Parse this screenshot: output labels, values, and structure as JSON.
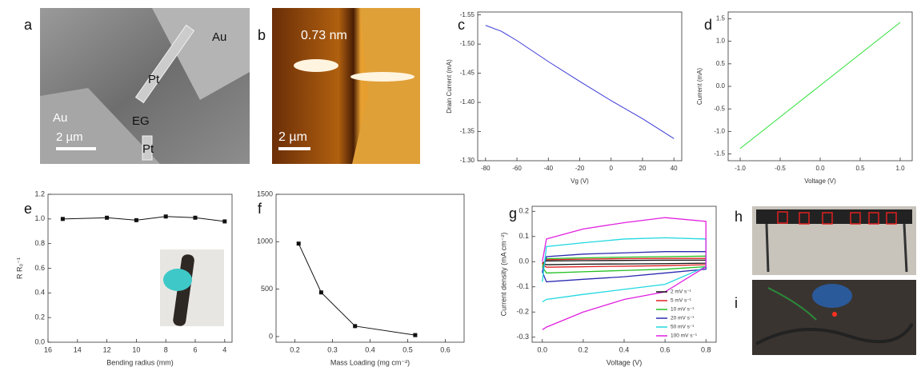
{
  "panel_letters": [
    "a",
    "b",
    "c",
    "d",
    "e",
    "f",
    "g",
    "h",
    "i"
  ],
  "images": {
    "a": [
      "Au",
      "Pt",
      "Au",
      "EG",
      "Pt",
      "2 µm"
    ],
    "b": [
      "0.73 nm",
      "2 µm"
    ]
  },
  "chart_data": [
    {
      "type": "line",
      "xlabel": "Vg (V)",
      "ylabel": "Drain Current (mA)",
      "x": [
        -80,
        -70,
        -60,
        -40,
        -20,
        0,
        20,
        40
      ],
      "series": [
        {
          "color": "#3a3ad8",
          "values": [
            -1.532,
            -1.522,
            -1.506,
            -1.47,
            -1.436,
            -1.403,
            -1.372,
            -1.338
          ]
        }
      ],
      "xlim": [
        -85,
        45
      ],
      "xticks": [
        -80,
        -60,
        -40,
        -20,
        0,
        20,
        40
      ],
      "ylim": [
        -1.3,
        -1.555
      ],
      "yticks": [
        {
          "value": -1.3,
          "label": "-1.30"
        },
        -1.35,
        {
          "value": -1.4,
          "label": "-1.40"
        },
        -1.45,
        {
          "value": -1.5,
          "label": "-1.50"
        },
        -1.55
      ]
    },
    {
      "type": "line",
      "xlabel": "Voltage (V)",
      "ylabel": "Current (mA)",
      "x": [
        -1,
        1
      ],
      "series": [
        {
          "color": "#2ee03a",
          "values": [
            -1.38,
            1.42
          ]
        }
      ],
      "xlim": [
        -1.15,
        1.15
      ],
      "xticks": [
        {
          "value": -1,
          "label": "-1.0"
        },
        -0.5,
        {
          "value": 0,
          "label": "0.0"
        },
        0.5,
        {
          "value": 1,
          "label": "1.0"
        }
      ],
      "ylim": [
        -1.65,
        1.65
      ],
      "yticks": [
        -1.5,
        {
          "value": -1,
          "label": "-1.0"
        },
        -0.5,
        {
          "value": 0,
          "label": "0.0"
        },
        0.5,
        {
          "value": 1,
          "label": "1.0"
        },
        1.5
      ]
    },
    {
      "type": "line",
      "xlabel": "Bending radius (mm)",
      "ylabel": "R R₀⁻¹",
      "markers": true,
      "x": [
        15,
        12,
        10,
        8,
        6,
        4
      ],
      "series": [
        {
          "color": "#111111",
          "values": [
            1.0,
            1.01,
            0.99,
            1.02,
            1.01,
            0.98
          ]
        }
      ],
      "xlim": [
        16,
        3.5
      ],
      "xticks": [
        16,
        14,
        12,
        10,
        8,
        6,
        4
      ],
      "ylim": [
        0,
        1.2
      ],
      "yticks": [
        {
          "value": 0,
          "label": "0.0"
        },
        0.2,
        0.4,
        0.6,
        0.8,
        {
          "value": 1,
          "label": "1.0"
        },
        1.2
      ]
    },
    {
      "type": "line",
      "xlabel": "Mass Loading (mg cm⁻²)",
      "markers": true,
      "x": [
        0.21,
        0.27,
        0.36,
        0.52
      ],
      "series": [
        {
          "color": "#111111",
          "values": [
            980,
            465,
            110,
            15
          ]
        }
      ],
      "xlim": [
        0.15,
        0.65
      ],
      "xticks": [
        0.2,
        0.3,
        0.4,
        0.5,
        0.6
      ],
      "ylim": [
        -60,
        1500
      ],
      "yticks": [
        0,
        500,
        1000,
        1500
      ]
    },
    {
      "type": "line",
      "xlabel": "Voltage (V)",
      "ylabel": "Current density (mA cm⁻²)",
      "legend": "lower right",
      "series": [
        {
          "name": "2 mV s⁻¹",
          "color": "#111111",
          "x": [
            0,
            0.02,
            0.2,
            0.4,
            0.6,
            0.8,
            0.8,
            0.6,
            0.4,
            0.2,
            0.02,
            0
          ],
          "values": [
            -0.005,
            0.003,
            0.004,
            0.005,
            0.006,
            0.006,
            -0.006,
            -0.008,
            -0.009,
            -0.01,
            -0.012,
            -0.005
          ]
        },
        {
          "name": "5 mV s⁻¹",
          "color": "#e02020",
          "x": [
            0,
            0.02,
            0.2,
            0.4,
            0.6,
            0.8,
            0.8,
            0.6,
            0.4,
            0.2,
            0.02,
            0
          ],
          "values": [
            -0.01,
            0.008,
            0.01,
            0.012,
            0.013,
            0.013,
            -0.012,
            -0.016,
            -0.018,
            -0.02,
            -0.022,
            -0.01
          ]
        },
        {
          "name": "10 mV s⁻¹",
          "color": "#22c022",
          "x": [
            0,
            0.02,
            0.2,
            0.4,
            0.6,
            0.8,
            0.8,
            0.6,
            0.4,
            0.2,
            0.02,
            0
          ],
          "values": [
            -0.02,
            0.012,
            0.015,
            0.018,
            0.02,
            0.022,
            -0.02,
            -0.03,
            -0.035,
            -0.04,
            -0.045,
            -0.02
          ]
        },
        {
          "name": "20 mV s⁻¹",
          "color": "#2a2ab0",
          "x": [
            0,
            0.02,
            0.2,
            0.4,
            0.6,
            0.8,
            0.8,
            0.6,
            0.4,
            0.2,
            0.02,
            0
          ],
          "values": [
            -0.04,
            0.02,
            0.03,
            0.035,
            0.04,
            0.04,
            -0.03,
            -0.045,
            -0.06,
            -0.07,
            -0.08,
            -0.04
          ]
        },
        {
          "name": "50 mV s⁻¹",
          "color": "#20d8e0",
          "x": [
            0,
            0.02,
            0.2,
            0.4,
            0.6,
            0.8,
            0.8,
            0.6,
            0.4,
            0.2,
            0.02,
            0
          ],
          "values": [
            -0.08,
            0.06,
            0.075,
            0.09,
            0.095,
            0.09,
            -0.02,
            -0.09,
            -0.11,
            -0.13,
            -0.15,
            -0.16
          ]
        },
        {
          "name": "100 mV s⁻¹",
          "color": "#e020e0",
          "x": [
            0,
            0.02,
            0.2,
            0.4,
            0.6,
            0.8,
            0.8,
            0.6,
            0.4,
            0.2,
            0.02,
            0
          ],
          "values": [
            0,
            0.09,
            0.13,
            0.155,
            0.175,
            0.16,
            -0.02,
            -0.12,
            -0.15,
            -0.2,
            -0.26,
            -0.27
          ]
        }
      ],
      "xlim": [
        -0.05,
        0.85
      ],
      "xticks": [
        {
          "value": 0,
          "label": "0.0"
        },
        0.2,
        0.4,
        0.6,
        0.8
      ],
      "ylim": [
        -0.32,
        0.22
      ],
      "yticks": [
        -0.3,
        -0.2,
        -0.1,
        {
          "value": 0,
          "label": "0.0"
        },
        0.1,
        0.2
      ]
    }
  ]
}
